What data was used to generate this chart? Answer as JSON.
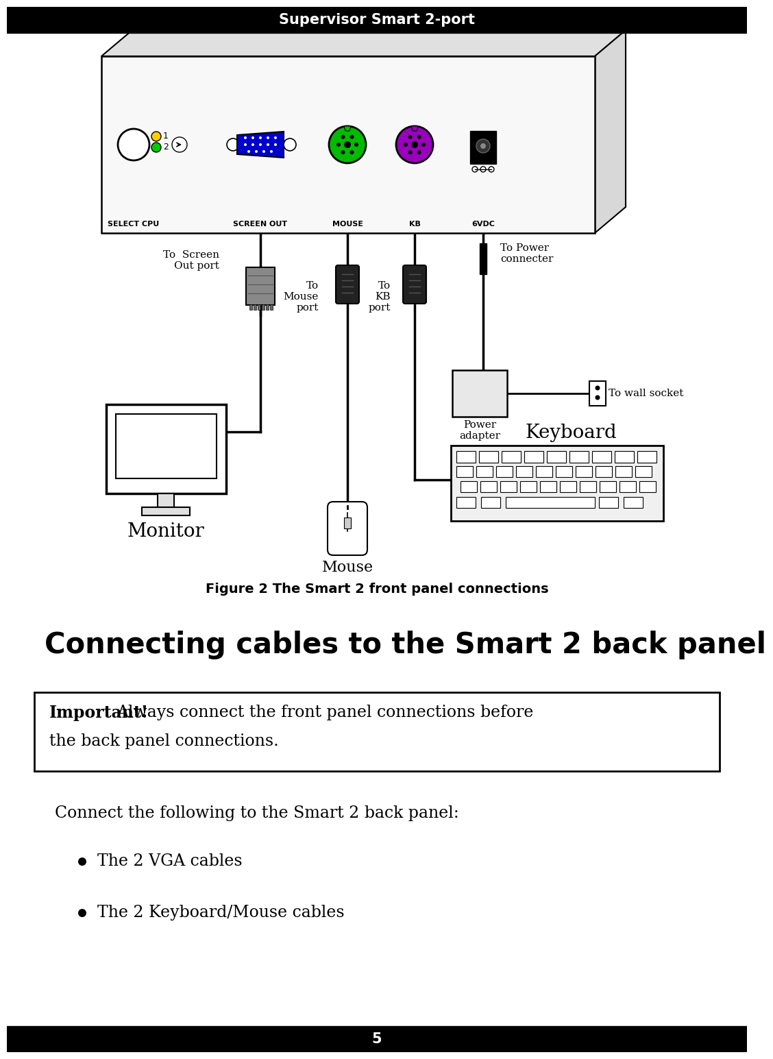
{
  "header_text": "Supervisor Smart 2-port",
  "header_bg": "#000000",
  "header_text_color": "#ffffff",
  "footer_text": "5",
  "footer_bg": "#000000",
  "footer_text_color": "#ffffff",
  "bg_color": "#ffffff",
  "figure_caption": "Figure 2 The Smart 2 front panel connections",
  "section_title": "Connecting cables to the Smart 2 back panel",
  "important_bold": "Important!",
  "body_text": "Connect the following to the Smart 2 back panel:",
  "bullet1": "The 2 VGA cables",
  "bullet2": "The 2 Keyboard/Mouse cables",
  "panel_labels": [
    "SELECT CPU",
    "SCREEN OUT",
    "MOUSE",
    "KB",
    "6VDC"
  ],
  "vga_color": "#0000cc",
  "ps2_green_color": "#00bb00",
  "ps2_purple_color": "#9900bb"
}
